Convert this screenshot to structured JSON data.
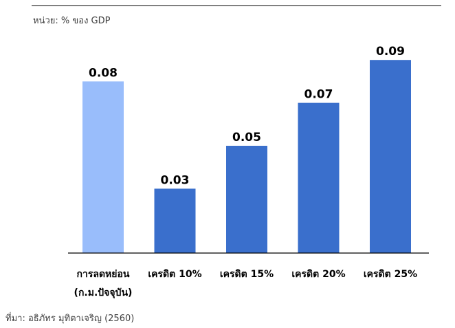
{
  "header": {
    "unit_label": "หน่วย: % ของ GDP"
  },
  "footer": {
    "source": "ที่มา: อธิภัทร มุทิตาเจริญ (2560)"
  },
  "colors": {
    "highlight_bar": "#99BDFB",
    "bar": "#3A6FCC",
    "axis": "#000000",
    "label_text": "#000000"
  },
  "chart_data": {
    "type": "bar",
    "title": "",
    "xlabel": "",
    "ylabel": "",
    "ylim": [
      0,
      0.1
    ],
    "grid": false,
    "categories": [
      [
        "การลดหย่อน",
        "(ก.ม.ปัจจุบัน)"
      ],
      [
        "เครดิต 10%"
      ],
      [
        "เครดิต 15%"
      ],
      [
        "เครดิต 20%"
      ],
      [
        "เครดิต 25%"
      ]
    ],
    "values": [
      0.08,
      0.03,
      0.05,
      0.07,
      0.09
    ],
    "value_labels": [
      "0.08",
      "0.03",
      "0.05",
      "0.07",
      "0.09"
    ],
    "highlight_index": 0
  }
}
